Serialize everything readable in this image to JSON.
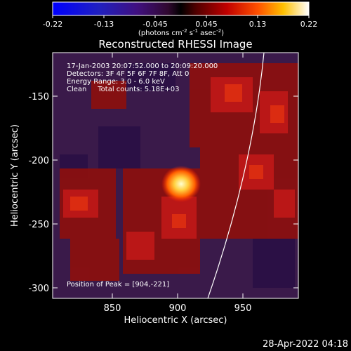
{
  "colorbar": {
    "tick_labels": [
      "-0.22",
      "-0.13",
      "-0.045",
      "0.045",
      "0.13",
      "0.22"
    ],
    "units": "(photons cm",
    "units_sup1": "-2",
    "units_mid": " s",
    "units_sup2": "-1",
    "units_end": " asec",
    "units_sup3": "-2",
    "units_close": ")"
  },
  "title": "Reconstructed RHESSI Image",
  "info": {
    "line1": "17-Jan-2003 20:07:52.000 to 20:09:20.000",
    "line2": "Detectors: 3F 4F 5F 6F 7F 8F, Att 0",
    "line3": "Energy Range: 3.0 - 6.0 keV",
    "line4": "Clean     Total counts: 5.18E+03"
  },
  "peak_text": "Position of Peak = [904,-221]",
  "axes": {
    "xlabel": "Heliocentric X (arcsec)",
    "ylabel": "Heliocentric Y (arcsec)",
    "x_ticks": [
      "850",
      "900",
      "950"
    ],
    "y_ticks": [
      "-150",
      "-200",
      "-250",
      "-300"
    ]
  },
  "footer_timestamp": "28-Apr-2022 04:18"
}
